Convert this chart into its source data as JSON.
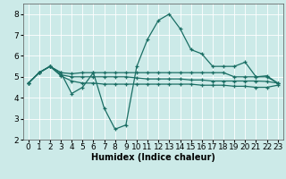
{
  "xlabel": "Humidex (Indice chaleur)",
  "background_color": "#cceae8",
  "grid_color": "#ffffff",
  "line_color": "#1a6e64",
  "x_values": [
    0,
    1,
    2,
    3,
    4,
    5,
    6,
    7,
    8,
    9,
    10,
    11,
    12,
    13,
    14,
    15,
    16,
    17,
    18,
    19,
    20,
    21,
    22,
    23
  ],
  "line1": [
    4.7,
    5.2,
    5.5,
    5.2,
    4.2,
    4.5,
    5.2,
    3.5,
    2.5,
    2.7,
    5.5,
    6.8,
    7.7,
    8.0,
    7.3,
    6.3,
    6.1,
    5.5,
    5.5,
    5.5,
    5.7,
    5.0,
    5.0,
    4.7
  ],
  "line2": [
    4.7,
    5.2,
    5.5,
    5.2,
    5.15,
    5.2,
    5.2,
    5.2,
    5.2,
    5.2,
    5.2,
    5.2,
    5.2,
    5.2,
    5.2,
    5.2,
    5.2,
    5.2,
    5.2,
    5.0,
    5.0,
    5.0,
    5.05,
    4.7
  ],
  "line3": [
    4.7,
    5.2,
    5.5,
    5.1,
    5.0,
    5.0,
    5.0,
    5.0,
    5.0,
    5.0,
    4.95,
    4.9,
    4.9,
    4.9,
    4.9,
    4.85,
    4.85,
    4.8,
    4.8,
    4.8,
    4.8,
    4.8,
    4.78,
    4.7
  ],
  "line4": [
    4.7,
    5.2,
    5.5,
    5.05,
    4.8,
    4.7,
    4.7,
    4.65,
    4.65,
    4.65,
    4.65,
    4.65,
    4.65,
    4.65,
    4.65,
    4.65,
    4.6,
    4.6,
    4.6,
    4.55,
    4.55,
    4.5,
    4.5,
    4.6
  ],
  "ylim": [
    2,
    8.5
  ],
  "xlim": [
    -0.5,
    23.5
  ],
  "yticks": [
    2,
    3,
    4,
    5,
    6,
    7,
    8
  ],
  "xticks": [
    0,
    1,
    2,
    3,
    4,
    5,
    6,
    7,
    8,
    9,
    10,
    11,
    12,
    13,
    14,
    15,
    16,
    17,
    18,
    19,
    20,
    21,
    22,
    23
  ],
  "marker": "+",
  "marker_size": 3.5,
  "linewidth": 0.9,
  "fontsize_label": 7,
  "fontsize_tick": 6.5
}
